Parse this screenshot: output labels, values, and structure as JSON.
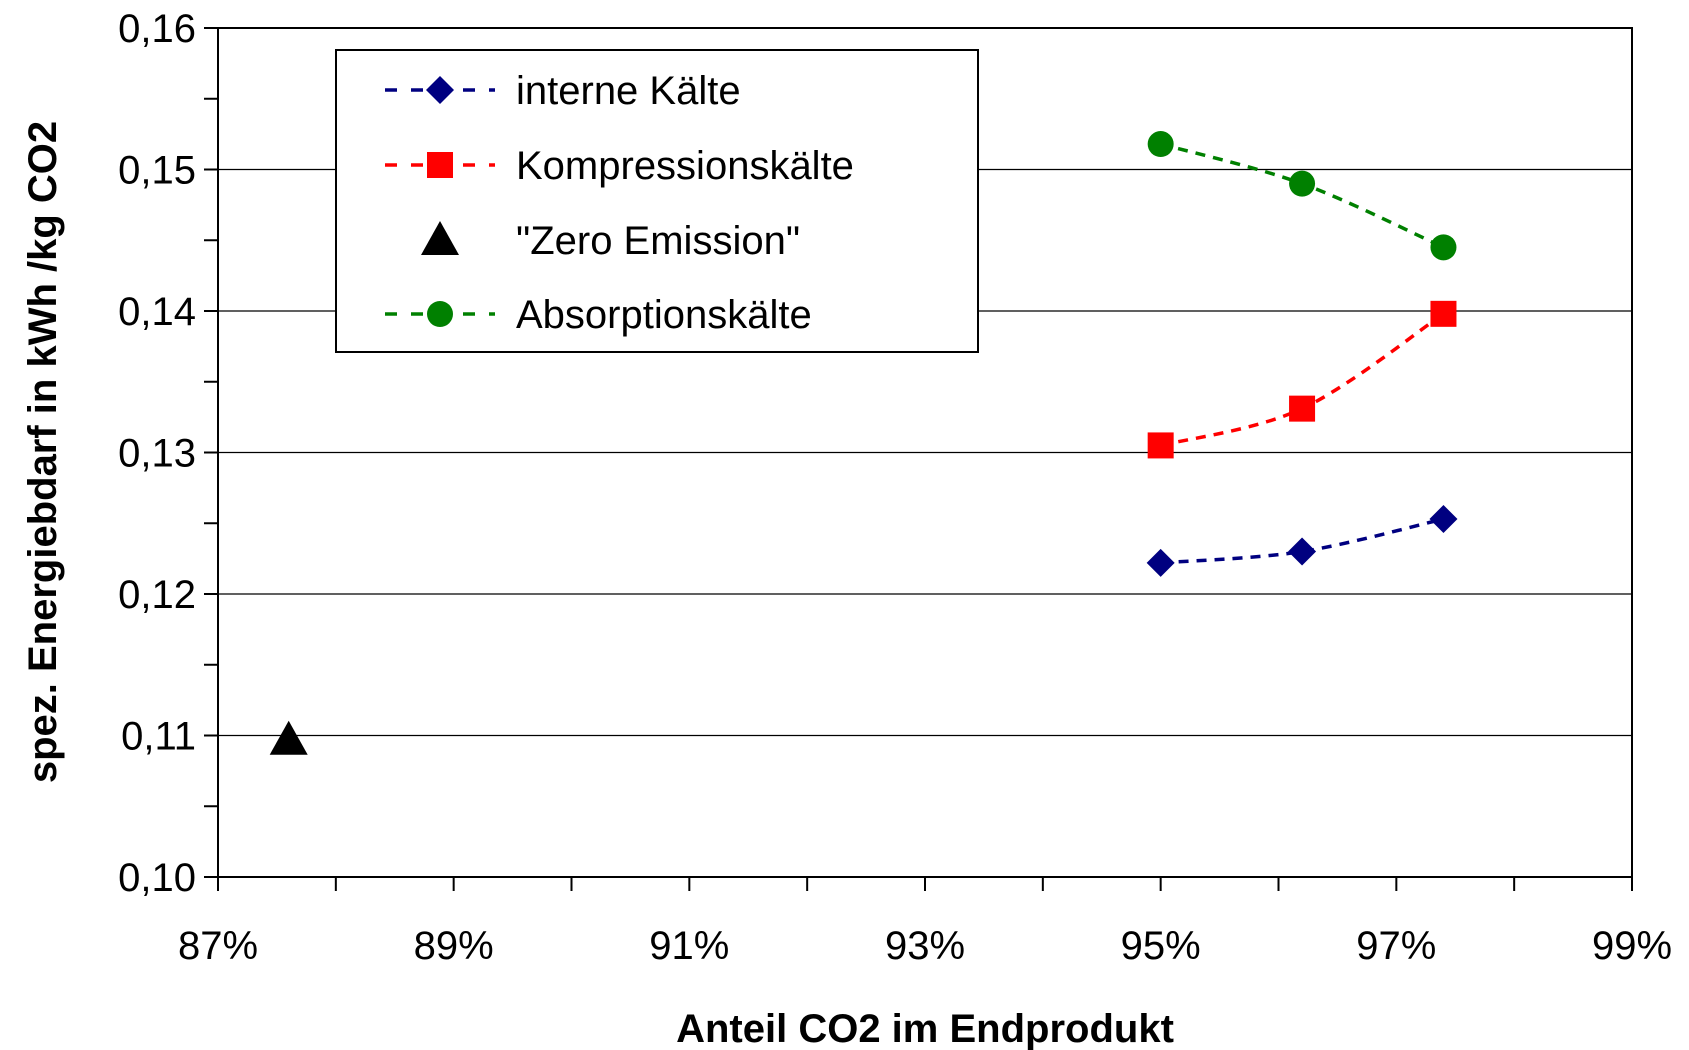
{
  "chart_data": {
    "type": "scatter",
    "title": "",
    "xlabel": "Anteil CO2 im Endprodukt",
    "ylabel": "spez. Energiebdarf in kWh /kg CO2",
    "xlim": [
      0.87,
      0.99
    ],
    "ylim": [
      0.1,
      0.16
    ],
    "x_ticks": [
      {
        "value": 0.87,
        "label": "87%"
      },
      {
        "value": 0.89,
        "label": "89%"
      },
      {
        "value": 0.91,
        "label": "91%"
      },
      {
        "value": 0.93,
        "label": "93%"
      },
      {
        "value": 0.95,
        "label": "95%"
      },
      {
        "value": 0.97,
        "label": "97%"
      },
      {
        "value": 0.99,
        "label": "99%"
      }
    ],
    "y_ticks": [
      {
        "value": 0.1,
        "label": "0,10"
      },
      {
        "value": 0.11,
        "label": "0,11"
      },
      {
        "value": 0.12,
        "label": "0,12"
      },
      {
        "value": 0.13,
        "label": "0,13"
      },
      {
        "value": 0.14,
        "label": "0,14"
      },
      {
        "value": 0.15,
        "label": "0,15"
      },
      {
        "value": 0.16,
        "label": "0,16"
      }
    ],
    "grid": "horizontal",
    "legend": "top-left",
    "series": [
      {
        "name": "interne Kälte",
        "color": "#000080",
        "marker": "diamond",
        "dashed": true,
        "points": [
          [
            0.95,
            0.1222
          ],
          [
            0.962,
            0.123
          ],
          [
            0.974,
            0.1253
          ]
        ]
      },
      {
        "name": "Kompressionskälte",
        "color": "#ff0000",
        "marker": "square",
        "dashed": true,
        "points": [
          [
            0.95,
            0.1305
          ],
          [
            0.962,
            0.1331
          ],
          [
            0.974,
            0.1398
          ]
        ]
      },
      {
        "name": "\"Zero Emission\"",
        "color": "#000000",
        "marker": "triangle",
        "dashed": false,
        "points": [
          [
            0.876,
            0.1097
          ]
        ]
      },
      {
        "name": "Absorptionskälte",
        "color": "#008000",
        "marker": "circle",
        "dashed": true,
        "points": [
          [
            0.95,
            0.1518
          ],
          [
            0.962,
            0.149
          ],
          [
            0.974,
            0.1445
          ]
        ]
      }
    ]
  }
}
